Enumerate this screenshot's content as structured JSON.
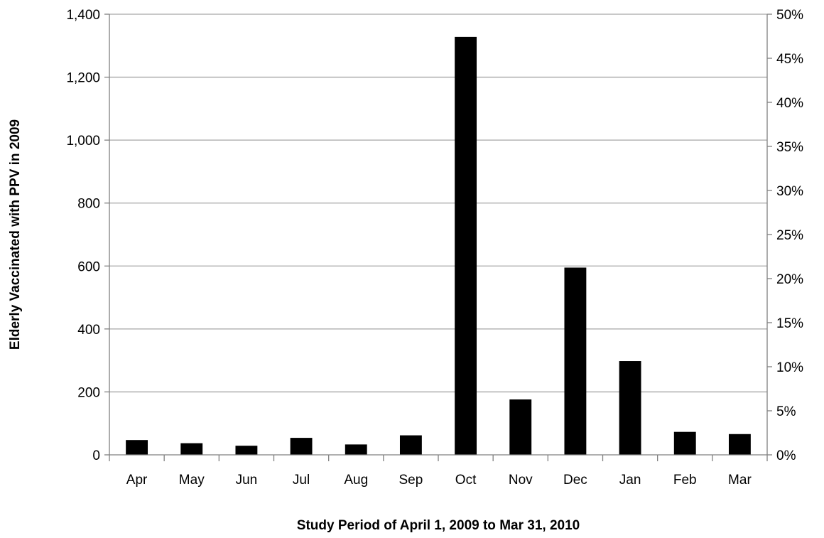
{
  "chart_data": {
    "type": "bar",
    "title": "",
    "xlabel": "Study Period of April 1, 2009 to Mar 31, 2010",
    "ylabel": "Elderly Vaccinated with PPV in 2009",
    "categories": [
      "Apr",
      "May",
      "Jun",
      "Jul",
      "Aug",
      "Sep",
      "Oct",
      "Nov",
      "Dec",
      "Jan",
      "Feb",
      "Mar"
    ],
    "series": [
      {
        "values": [
          47,
          37,
          29,
          54,
          33,
          62,
          1328,
          176,
          595,
          298,
          73,
          66
        ],
        "color": "#000000"
      }
    ],
    "ylim": [
      0,
      1400
    ],
    "y_ticks": [
      "0",
      "200",
      "400",
      "600",
      "800",
      "1,000",
      "1,200",
      "1,400"
    ],
    "y_tick_values": [
      0,
      200,
      400,
      600,
      800,
      1000,
      1200,
      1400
    ],
    "y2lim": [
      0,
      50
    ],
    "y2_ticks": [
      "0%",
      "5%",
      "10%",
      "15%",
      "20%",
      "25%",
      "30%",
      "35%",
      "40%",
      "45%",
      "50%"
    ],
    "y2_tick_values": [
      0,
      5,
      10,
      15,
      20,
      25,
      30,
      35,
      40,
      45,
      50
    ],
    "grid": true,
    "legend": "none"
  }
}
